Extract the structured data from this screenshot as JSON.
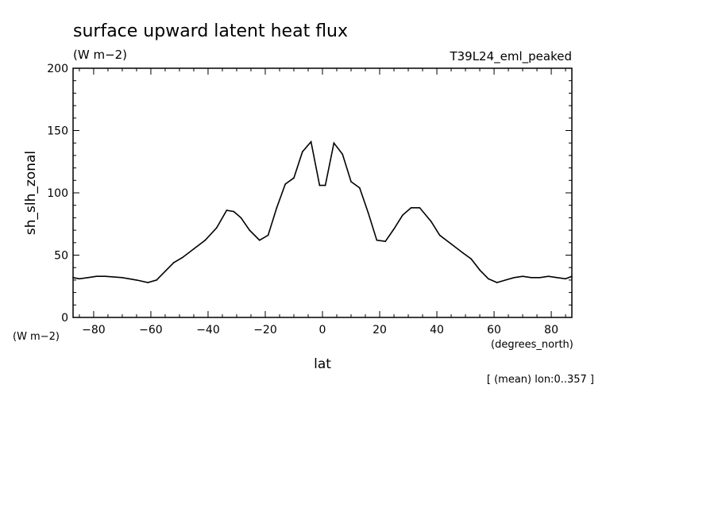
{
  "chart_data": {
    "type": "line",
    "title": "surface upward latent heat flux",
    "units": "(W m−2)",
    "experiment": "T39L24_eml_peaked",
    "ylabel": "sh_slh_zonal",
    "yunits": "(W m−2)",
    "xlabel": "lat",
    "xunits": "(degrees_north)",
    "footnote": "[ (mean) lon:0..357 ]",
    "xlim": [
      -87.2,
      87.2
    ],
    "ylim": [
      0,
      200
    ],
    "xticks": [
      -80,
      -60,
      -40,
      -20,
      0,
      20,
      40,
      60,
      80
    ],
    "yticks": [
      0,
      50,
      100,
      150,
      200
    ],
    "xtick_labels": [
      "−80",
      "−60",
      "−40",
      "−20",
      "0",
      "20",
      "40",
      "60",
      "80"
    ],
    "ytick_labels": [
      "0",
      "50",
      "100",
      "150",
      "200"
    ],
    "grid": false,
    "series": [
      {
        "x": [
          -87.2,
          -85,
          -82,
          -79,
          -76,
          -70,
          -65,
          -61,
          -58,
          -55,
          -52,
          -49,
          -45,
          -41,
          -37,
          -33.5,
          -31,
          -28.5,
          -25.5,
          -22,
          -19,
          -16,
          -13,
          -10,
          -7,
          -4,
          -1,
          1,
          4,
          7,
          10,
          13,
          16,
          19,
          22,
          25,
          28,
          31,
          34,
          38,
          41,
          45,
          49,
          52,
          55,
          58,
          61,
          64,
          67,
          70,
          73,
          76,
          79,
          82,
          85,
          87.2
        ],
        "y": [
          32,
          31,
          32,
          33,
          33,
          32,
          30,
          28,
          30,
          37,
          44,
          48,
          55,
          62,
          72,
          86,
          85,
          80,
          70,
          62,
          66,
          88,
          107,
          112,
          133,
          141,
          106,
          106,
          140,
          131,
          109,
          104,
          84,
          62,
          61,
          71,
          82,
          88,
          88,
          77,
          66,
          59,
          52,
          47,
          38,
          31,
          28,
          30,
          32,
          33,
          32,
          32,
          33,
          32,
          31,
          33
        ]
      }
    ]
  }
}
